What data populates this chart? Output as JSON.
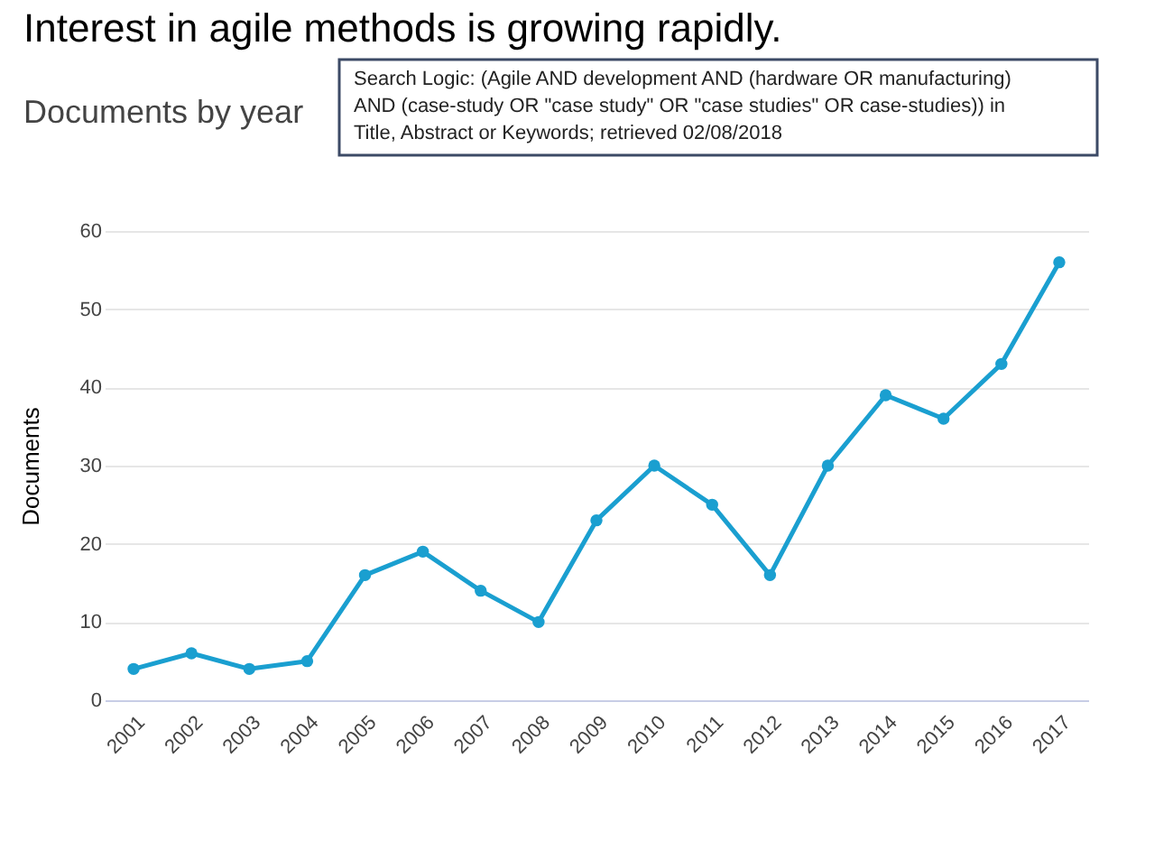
{
  "chart_data": {
    "type": "line",
    "title": "Documents by year",
    "ylabel": "Documents",
    "annotations": [
      "Interest in agile methods is growing rapidly.",
      "Search Logic: (Agile AND development AND (hardware OR manufacturing) AND (case-study OR \"case study\" OR \"case studies\" OR case-studies)) in Title, Abstract or Keywords; retrieved 02/08/2018"
    ],
    "categories": [
      "2001",
      "2002",
      "2003",
      "2004",
      "2005",
      "2006",
      "2007",
      "2008",
      "2009",
      "2010",
      "2011",
      "2012",
      "2013",
      "2014",
      "2015",
      "2016",
      "2017"
    ],
    "series": [
      {
        "color": "#1a9fd0",
        "values": [
          4,
          6,
          4,
          5,
          16,
          19,
          14,
          10,
          23,
          30,
          25,
          16,
          30,
          39,
          36,
          43,
          56
        ]
      }
    ],
    "ylim": [
      0,
      60
    ],
    "yticks": [
      0,
      10,
      20,
      30,
      40,
      50,
      60
    ],
    "grid": "y",
    "marker": "circle"
  }
}
